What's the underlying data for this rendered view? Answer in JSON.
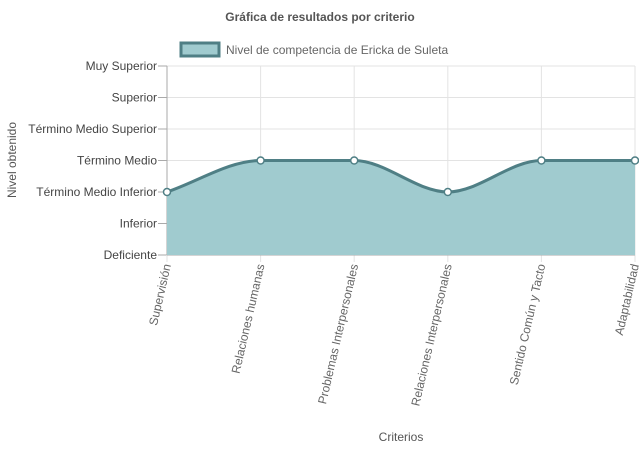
{
  "chart_data": {
    "type": "area",
    "title": "Gráfica de resultados por criterio",
    "xlabel": "Criterios",
    "ylabel": "Nivel obtenido",
    "categories": [
      "Supervisión",
      "Relaciones humanas",
      "Problemas Interpersonales",
      "Relaciones Interpersonales",
      "Sentido Común y Tacto",
      "Adaptabilidad"
    ],
    "y_categories": [
      "Deficiente",
      "Inferior",
      "Término Medio Inferior",
      "Término Medio",
      "Término Medio Superior",
      "Superior",
      "Muy Superior"
    ],
    "series": [
      {
        "name": "Nivel de competencia de Ericka de Suleta",
        "values": [
          2,
          3,
          3,
          2,
          3,
          3
        ],
        "value_labels": [
          "Término Medio Inferior",
          "Término Medio",
          "Término Medio",
          "Término Medio Inferior",
          "Término Medio",
          "Término Medio"
        ]
      }
    ],
    "ylim": [
      0,
      6
    ],
    "grid": true,
    "legend_position": "top",
    "colors": {
      "fill": "#a0cbcf",
      "line": "#4f7f85",
      "grid": "#e3e3e3",
      "axis": "#aaaaaa",
      "point_fill": "#ffffff"
    }
  }
}
